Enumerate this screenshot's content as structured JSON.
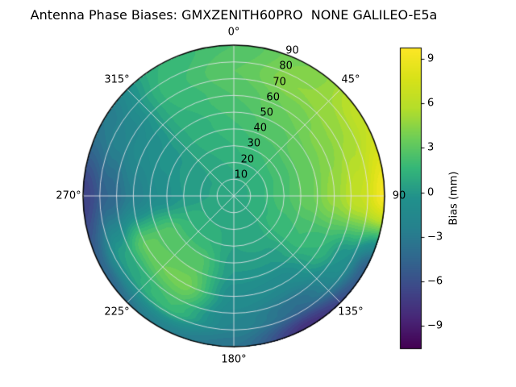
{
  "title": "Antenna Phase Biases: GMXZENITH60PRO  NONE GALILEO-E5a",
  "chart_data": {
    "type": "heatmap",
    "projection": "polar",
    "title": "Antenna Phase Biases: GMXZENITH60PRO  NONE GALILEO-E5a",
    "angular_ticks": [
      "0°",
      "45°",
      "90",
      "135°",
      "180°",
      "225°",
      "270°",
      "315°"
    ],
    "angular_tick_degrees": [
      0,
      45,
      90,
      135,
      180,
      225,
      270,
      315
    ],
    "radial_ticks": [
      10,
      20,
      30,
      40,
      50,
      60,
      70,
      80,
      90
    ],
    "radial_label_azimuth_deg": 22.5,
    "radial_max": 90,
    "grid_on": true,
    "colorbar": {
      "label": "Bias (mm)",
      "ticks": [
        "9",
        "6",
        "3",
        "0",
        "−3",
        "−6",
        "−9"
      ],
      "vmin": -10.5,
      "vmax": 9.7
    },
    "colormap": {
      "name": "viridis",
      "anchors": [
        "#440154",
        "#482878",
        "#3e4989",
        "#31688e",
        "#26828e",
        "#21918c",
        "#35b779",
        "#6ece58",
        "#b5de2b",
        "#d8e219",
        "#fde725"
      ]
    },
    "azimuth_deg": [
      0,
      30,
      60,
      90,
      120,
      150,
      180,
      210,
      240,
      270,
      300,
      330
    ],
    "zenith_deg": [
      0,
      15,
      30,
      45,
      60,
      75,
      90
    ],
    "bias_mm": [
      [
        0.5,
        1.0,
        1.5,
        2.0,
        2.5,
        3.0,
        2.5
      ],
      [
        0.5,
        1.2,
        2.0,
        2.8,
        3.5,
        4.5,
        4.0
      ],
      [
        0.5,
        1.3,
        2.2,
        3.2,
        4.2,
        5.0,
        6.5
      ],
      [
        0.5,
        1.4,
        2.4,
        3.4,
        4.8,
        6.5,
        9.3
      ],
      [
        0.5,
        1.2,
        1.8,
        2.0,
        1.5,
        -0.5,
        -5.0
      ],
      [
        0.5,
        0.8,
        0.8,
        0.0,
        -1.5,
        -4.0,
        -8.0
      ],
      [
        0.5,
        0.6,
        0.5,
        0.0,
        -1.0,
        -2.0,
        -3.5
      ],
      [
        0.5,
        0.8,
        1.5,
        2.8,
        3.8,
        2.0,
        -2.5
      ],
      [
        0.5,
        0.8,
        1.5,
        2.8,
        3.2,
        0.5,
        -4.5
      ],
      [
        0.5,
        0.5,
        0.0,
        -1.0,
        -2.5,
        -4.5,
        -7.0
      ],
      [
        0.5,
        0.5,
        0.2,
        -0.3,
        -1.0,
        -2.0,
        -3.0
      ],
      [
        0.5,
        0.8,
        1.0,
        1.2,
        1.5,
        1.8,
        1.5
      ]
    ]
  }
}
